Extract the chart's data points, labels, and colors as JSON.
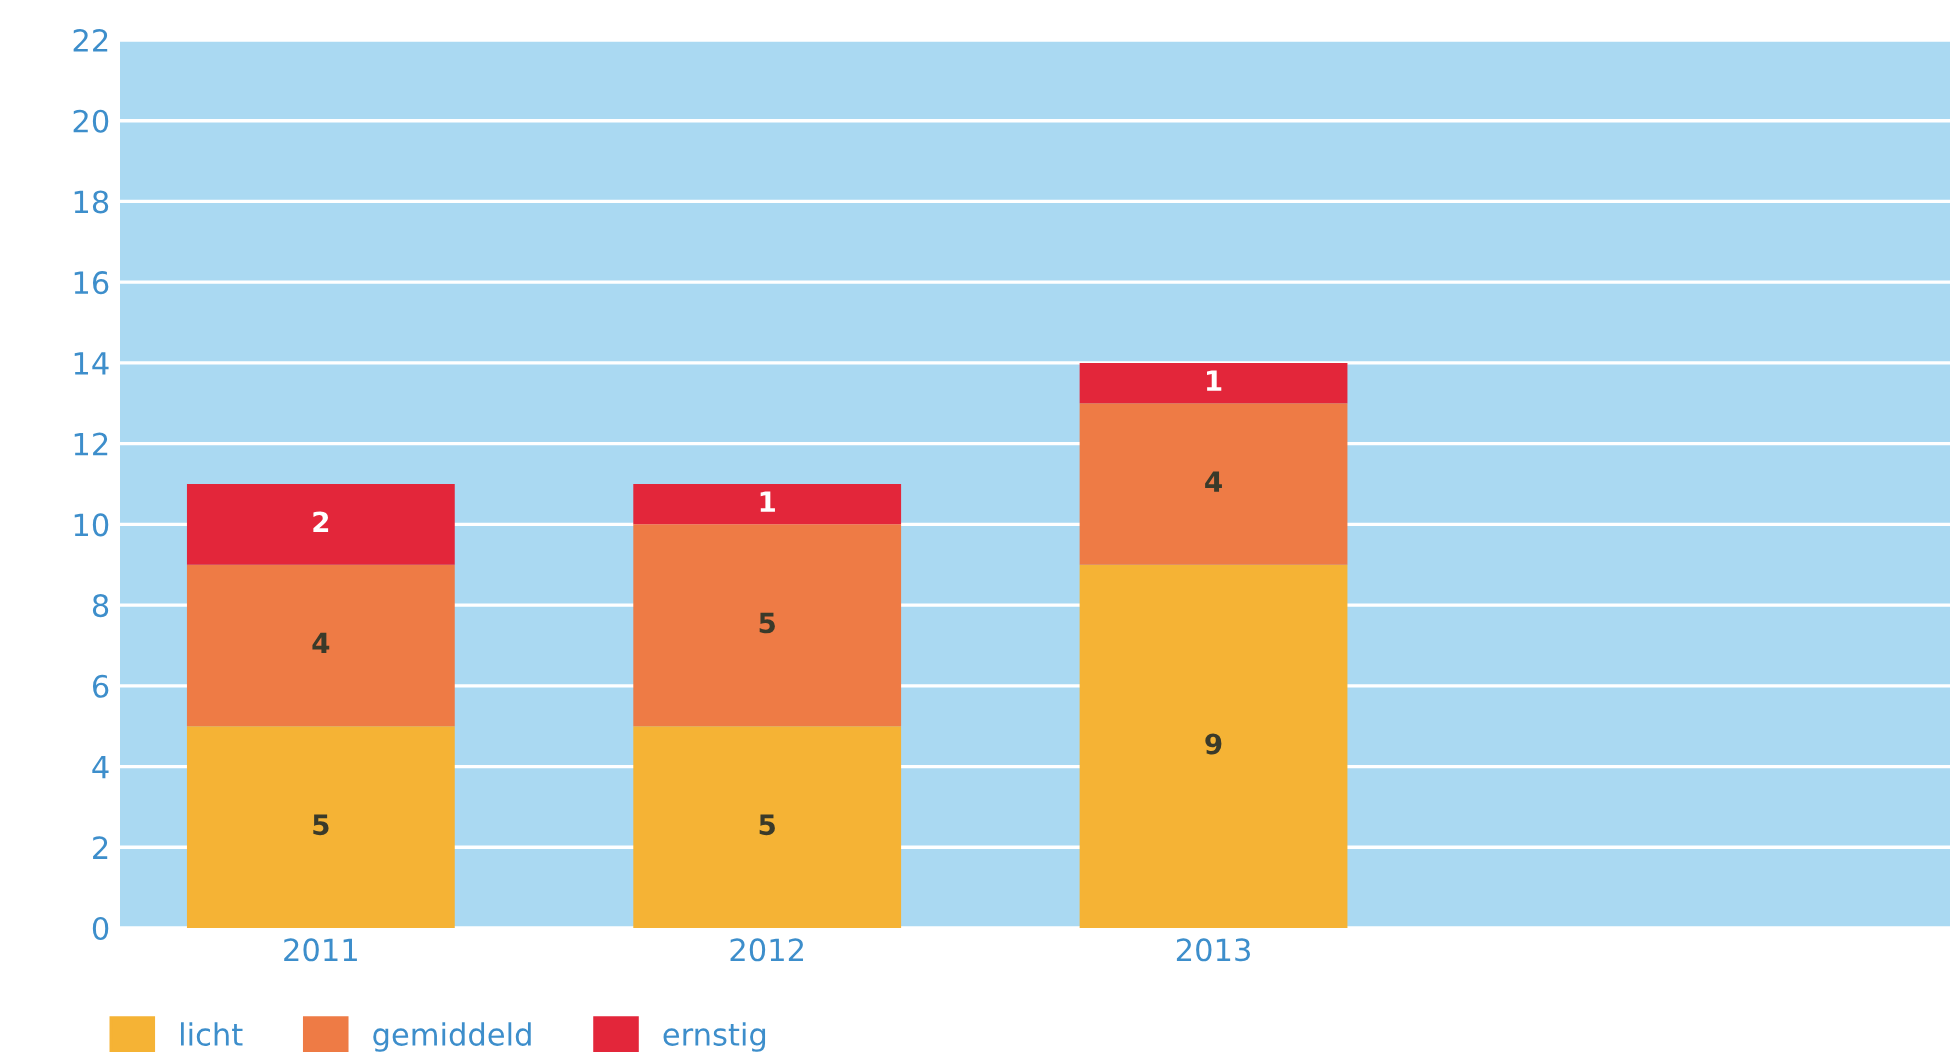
{
  "chart_data": {
    "type": "bar",
    "stacked": true,
    "data_labels": true,
    "categories": [
      "2011",
      "2012",
      "2013",
      null
    ],
    "series": [
      {
        "name": "licht",
        "color": "#f5b335",
        "values": [
          5,
          5,
          9,
          null
        ]
      },
      {
        "name": "gemiddeld",
        "color": "#ee7b45",
        "values": [
          4,
          5,
          4,
          null
        ]
      },
      {
        "name": "ernstig",
        "color": "#e3263a",
        "values": [
          2,
          1,
          1,
          null
        ]
      }
    ],
    "ylim": [
      0,
      22
    ],
    "yticks": [
      0,
      2,
      4,
      6,
      8,
      10,
      12,
      14,
      16,
      18,
      20,
      22
    ],
    "grid": "y",
    "legend": "bottom"
  }
}
